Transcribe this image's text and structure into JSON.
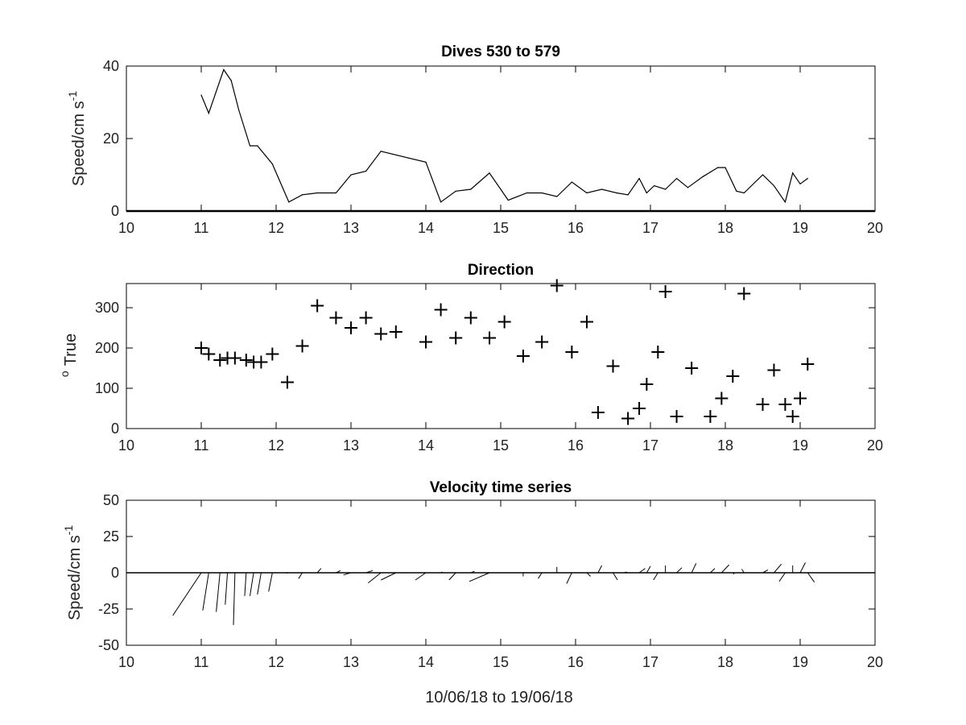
{
  "chart_data": [
    {
      "type": "line",
      "title": "Dives 530 to 579",
      "ylabel": "Speed/cm s",
      "ylabel_sup": "-1",
      "xlim": [
        10,
        20
      ],
      "ylim": [
        0,
        40
      ],
      "xticks": [
        10,
        11,
        12,
        13,
        14,
        15,
        16,
        17,
        18,
        19,
        20
      ],
      "yticks": [
        0,
        20,
        40
      ],
      "baseline": 0,
      "x": [
        11.0,
        11.1,
        11.3,
        11.4,
        11.5,
        11.65,
        11.75,
        11.95,
        12.17,
        12.35,
        12.55,
        12.8,
        13.0,
        13.2,
        13.4,
        14.0,
        14.2,
        14.4,
        14.6,
        14.85,
        15.1,
        15.35,
        15.55,
        15.75,
        15.95,
        16.15,
        16.35,
        16.55,
        16.7,
        16.85,
        16.95,
        17.05,
        17.2,
        17.35,
        17.5,
        17.7,
        17.9,
        18.0,
        18.15,
        18.25,
        18.5,
        18.65,
        18.8,
        18.9,
        19.0,
        19.1
      ],
      "y": [
        32,
        27,
        39,
        36,
        28,
        18,
        18,
        13,
        2.5,
        4.5,
        5,
        5,
        10,
        11,
        16.5,
        13.5,
        2.5,
        5.5,
        6,
        10.5,
        3,
        5,
        5,
        4,
        8,
        5,
        6,
        5,
        4.5,
        9,
        5,
        7,
        6,
        9,
        6.5,
        9.5,
        12,
        12,
        5.5,
        5,
        10,
        7,
        2.5,
        10.5,
        7.5,
        9
      ]
    },
    {
      "type": "scatter",
      "title": "Direction",
      "ylabel": "True",
      "ylabel_sup": "o",
      "marker": "+",
      "xlim": [
        10,
        20
      ],
      "ylim": [
        0,
        360
      ],
      "xticks": [
        10,
        11,
        12,
        13,
        14,
        15,
        16,
        17,
        18,
        19,
        20
      ],
      "yticks": [
        0,
        100,
        200,
        300
      ],
      "x": [
        11.0,
        11.1,
        11.25,
        11.35,
        11.45,
        11.6,
        11.7,
        11.8,
        11.95,
        12.15,
        12.35,
        12.55,
        12.8,
        13.0,
        13.2,
        13.4,
        13.6,
        14.0,
        14.2,
        14.4,
        14.6,
        14.85,
        15.05,
        15.3,
        15.55,
        15.75,
        15.95,
        16.15,
        16.3,
        16.5,
        16.7,
        16.85,
        16.95,
        17.1,
        17.2,
        17.35,
        17.55,
        17.8,
        17.95,
        18.1,
        18.25,
        18.5,
        18.65,
        18.8,
        18.9,
        19.0,
        19.1
      ],
      "y": [
        200,
        185,
        170,
        175,
        175,
        170,
        165,
        165,
        185,
        115,
        205,
        305,
        275,
        250,
        275,
        235,
        240,
        215,
        295,
        225,
        275,
        225,
        265,
        180,
        215,
        355,
        190,
        265,
        40,
        155,
        25,
        50,
        110,
        190,
        340,
        30,
        150,
        30,
        75,
        130,
        335,
        60,
        145,
        60,
        30,
        75,
        160
      ]
    },
    {
      "type": "quiver",
      "title": "Velocity time series",
      "ylabel": "Speed/cm s",
      "ylabel_sup": "-1",
      "xlabel": "10/06/18 to 19/06/18",
      "xlim": [
        10,
        20
      ],
      "ylim": [
        -50,
        50
      ],
      "xticks": [
        10,
        11,
        12,
        13,
        14,
        15,
        16,
        17,
        18,
        19,
        20
      ],
      "yticks": [
        -50,
        -25,
        0,
        25,
        50
      ],
      "baseline": 0,
      "x": [
        11.0,
        11.1,
        11.25,
        11.35,
        11.45,
        11.6,
        11.7,
        11.8,
        11.95,
        12.15,
        12.35,
        12.55,
        12.8,
        13.0,
        13.2,
        13.4,
        13.6,
        14.0,
        14.2,
        14.4,
        14.6,
        14.85,
        15.05,
        15.3,
        15.55,
        15.75,
        15.95,
        16.15,
        16.3,
        16.5,
        16.7,
        16.85,
        16.95,
        17.1,
        17.2,
        17.35,
        17.55,
        17.8,
        17.95,
        18.1,
        18.25,
        18.5,
        18.65,
        18.8,
        18.9,
        19.0,
        19.1
      ],
      "dx": [
        -0.38,
        -0.08,
        -0.05,
        -0.03,
        -0.02,
        -0.02,
        -0.05,
        -0.05,
        -0.05,
        -0.01,
        -0.05,
        0.05,
        0.06,
        -0.1,
        0.09,
        -0.17,
        -0.2,
        -0.14,
        0.02,
        -0.09,
        0.05,
        -0.27,
        0.03,
        0.0,
        -0.05,
        0.0,
        -0.07,
        0.05,
        0.05,
        0.06,
        -0.04,
        0.08,
        0.05,
        -0.06,
        0.0,
        0.07,
        0.06,
        0.06,
        0.1,
        0.02,
        -0.03,
        0.07,
        0.1,
        -0.08,
        0.0,
        0.07,
        0.09
      ],
      "dy": [
        -29.5,
        -26,
        -27,
        -22,
        -36,
        -16,
        -16,
        -15,
        -13,
        -0.5,
        -4,
        3,
        1.5,
        -1.5,
        1.5,
        -7,
        -5,
        -5,
        0.5,
        -5,
        1,
        -6,
        0,
        -2.5,
        -4,
        4,
        -7.5,
        -2.5,
        5,
        -5,
        0.5,
        3,
        4.5,
        -5,
        5,
        3.5,
        6.5,
        3,
        5.5,
        -1,
        2.5,
        2,
        6,
        -6,
        5,
        7,
        -6.5
      ]
    }
  ]
}
